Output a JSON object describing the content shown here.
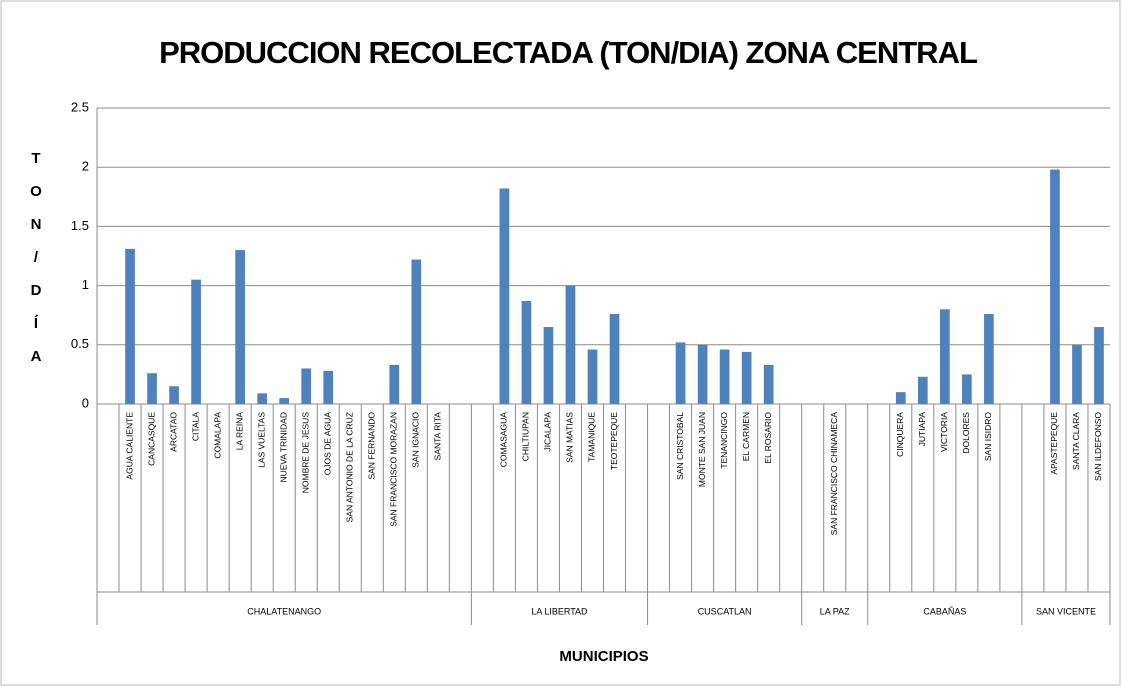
{
  "chart_data": {
    "type": "bar",
    "title": "PRODUCCION RECOLECTADA (TON/DIA) ZONA CENTRAL",
    "y_label": "TON/DÍA",
    "x_label": "MUNICIPIOS",
    "color": "#4f81bd",
    "ylim": [
      0,
      2.5
    ],
    "yticks": [
      0,
      0.5,
      1,
      1.5,
      2,
      2.5
    ],
    "grid": true,
    "groups": [
      {
        "name": "CHALATENANGO",
        "categories": [
          null,
          "AGUA CALIENTE",
          "CANCASQUE",
          "ARCATAO",
          "CITALA",
          "COMALAPA",
          "LA REINA",
          "LAS VUELTAS",
          "NUEVA TRINIDAD",
          "NOMBRE DE JESUS",
          "OJOS DE AGUA",
          "SAN ANTONIO DE LA CRUZ",
          "SAN FERNANDO",
          "SAN FRANCISCO MORAZAN",
          "SAN IGNACIO",
          "SANTA RITA",
          null
        ],
        "values": [
          null,
          1.31,
          0.26,
          0.15,
          1.05,
          0,
          1.3,
          0.09,
          0.05,
          0.3,
          0.28,
          0,
          0,
          0.33,
          1.22,
          0,
          null
        ]
      },
      {
        "name": "LA LIBERTAD",
        "categories": [
          null,
          "COMASAGUA",
          "CHILTIUPAN",
          "JICALAPA",
          "SAN MATIAS",
          "TAMANIQUE",
          "TEOTEPEQUE",
          null
        ],
        "values": [
          null,
          1.82,
          0.87,
          0.65,
          1.0,
          0.46,
          0.76,
          null
        ]
      },
      {
        "name": "CUSCATLAN",
        "categories": [
          null,
          "SAN CRISTOBAL",
          "MONTE SAN JUAN",
          "TENANCINGO",
          "EL CARMEN",
          "EL ROSARIO",
          null
        ],
        "values": [
          null,
          0.52,
          0.5,
          0.46,
          0.44,
          0.33,
          null
        ]
      },
      {
        "name": "LA PAZ",
        "categories": [
          null,
          "SAN FRANCISCO CHINAMECA",
          null
        ],
        "values": [
          null,
          0,
          null
        ]
      },
      {
        "name": "CABAÑAS",
        "categories": [
          null,
          "CINQUERA",
          "JUTIAPA",
          "VICTORIA",
          "DOLORES",
          "SAN ISIDRO",
          null
        ],
        "values": [
          null,
          0.1,
          0.23,
          0.8,
          0.25,
          0.76,
          null
        ]
      },
      {
        "name": "SAN VICENTE",
        "categories": [
          null,
          "APASTEPEQUE",
          "SANTA CLARA",
          "SAN ILDEFONSO"
        ],
        "values": [
          null,
          1.98,
          0.5,
          0.65
        ]
      }
    ]
  }
}
